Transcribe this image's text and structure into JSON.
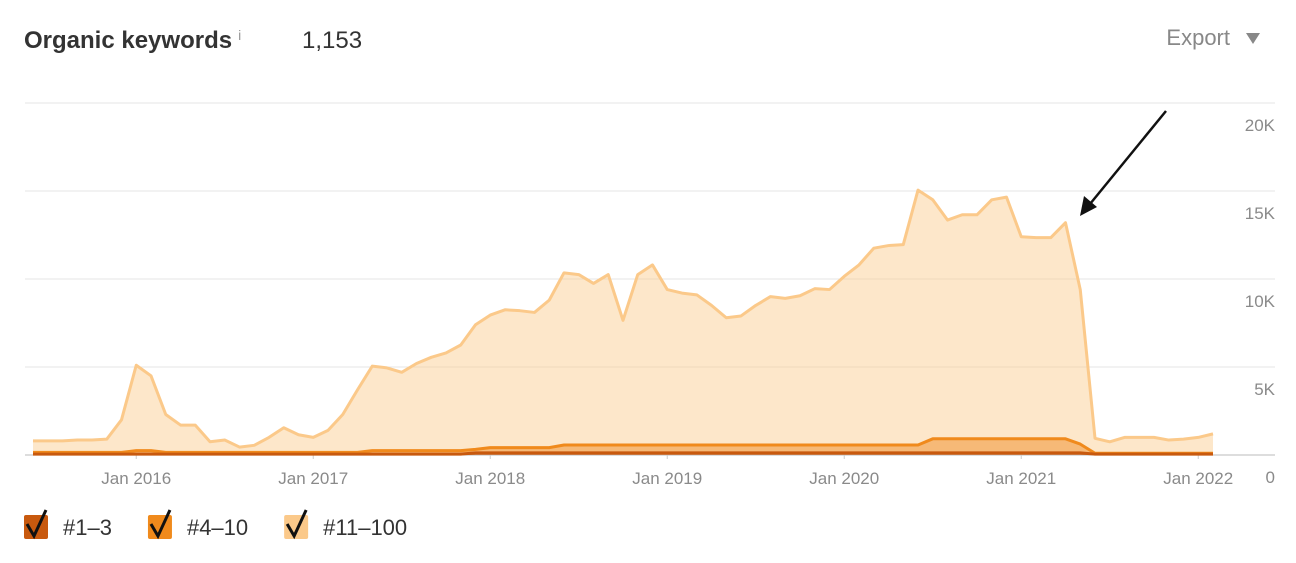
{
  "chart_data": {
    "type": "stacked_area",
    "title": "Organic keywords",
    "title_info": "i",
    "subtitle": "1,153",
    "export_button": "Export",
    "x": [
      "2015-06",
      "2015-07",
      "2015-08",
      "2015-09",
      "2015-10",
      "2015-11",
      "2015-12",
      "2016-01",
      "2016-02",
      "2016-03",
      "2016-04",
      "2016-05",
      "2016-06",
      "2016-07",
      "2016-08",
      "2016-09",
      "2016-10",
      "2016-11",
      "2016-12",
      "2017-01",
      "2017-02",
      "2017-03",
      "2017-04",
      "2017-05",
      "2017-06",
      "2017-07",
      "2017-08",
      "2017-09",
      "2017-10",
      "2017-11",
      "2017-12",
      "2018-01",
      "2018-02",
      "2018-03",
      "2018-04",
      "2018-05",
      "2018-06",
      "2018-07",
      "2018-08",
      "2018-09",
      "2018-10",
      "2018-11",
      "2018-12",
      "2019-01",
      "2019-02",
      "2019-03",
      "2019-04",
      "2019-05",
      "2019-06",
      "2019-07",
      "2019-08",
      "2019-09",
      "2019-10",
      "2019-11",
      "2019-12",
      "2020-01",
      "2020-02",
      "2020-03",
      "2020-04",
      "2020-05",
      "2020-06",
      "2020-07",
      "2020-08",
      "2020-09",
      "2020-10",
      "2020-11",
      "2020-12",
      "2021-01",
      "2021-02",
      "2021-03",
      "2021-04",
      "2021-05",
      "2021-06",
      "2021-07",
      "2021-08",
      "2021-09",
      "2021-10",
      "2021-11",
      "2021-12",
      "2022-01",
      "2022-02"
    ],
    "xticks": [
      {
        "value": "2016-01",
        "label": "Jan 2016"
      },
      {
        "value": "2017-01",
        "label": "Jan 2017"
      },
      {
        "value": "2018-01",
        "label": "Jan 2018"
      },
      {
        "value": "2019-01",
        "label": "Jan 2019"
      },
      {
        "value": "2020-01",
        "label": "Jan 2020"
      },
      {
        "value": "2021-01",
        "label": "Jan 2021"
      },
      {
        "value": "2022-01",
        "label": "Jan 2022"
      }
    ],
    "ylim": [
      0,
      20000
    ],
    "yticks": [
      0,
      {
        "value": 5000,
        "label": "5K"
      },
      {
        "value": 10000,
        "label": "10K"
      },
      {
        "value": 15000,
        "label": "15K"
      },
      {
        "value": 20000,
        "label": "20K"
      }
    ],
    "grid": true,
    "legend": "bottom-left",
    "series": [
      {
        "name": "#1–3",
        "color": "#c8590e",
        "values": [
          50,
          50,
          50,
          50,
          50,
          50,
          50,
          50,
          50,
          50,
          50,
          50,
          50,
          50,
          50,
          50,
          50,
          50,
          50,
          50,
          50,
          50,
          50,
          50,
          50,
          50,
          50,
          50,
          50,
          50,
          120,
          120,
          120,
          120,
          120,
          120,
          120,
          120,
          120,
          120,
          120,
          120,
          120,
          120,
          120,
          120,
          120,
          120,
          120,
          120,
          120,
          120,
          120,
          120,
          120,
          120,
          120,
          120,
          120,
          120,
          120,
          120,
          120,
          120,
          120,
          120,
          120,
          120,
          120,
          120,
          120,
          120,
          50,
          50,
          50,
          50,
          50,
          50,
          50,
          50,
          50
        ]
      },
      {
        "name": "#4–10",
        "color": "#f08a1c",
        "values": [
          100,
          100,
          100,
          100,
          100,
          100,
          100,
          200,
          200,
          100,
          100,
          100,
          100,
          100,
          100,
          100,
          100,
          100,
          100,
          100,
          100,
          100,
          100,
          200,
          200,
          200,
          200,
          200,
          200,
          200,
          200,
          300,
          300,
          300,
          300,
          300,
          450,
          450,
          450,
          450,
          450,
          450,
          450,
          450,
          450,
          450,
          450,
          450,
          450,
          450,
          450,
          450,
          450,
          450,
          450,
          450,
          450,
          450,
          450,
          450,
          450,
          800,
          800,
          800,
          800,
          800,
          800,
          800,
          800,
          800,
          800,
          500,
          50,
          50,
          50,
          50,
          50,
          50,
          50,
          50,
          50
        ]
      },
      {
        "name": "#11–100",
        "color": "#fbc98a",
        "values": [
          650,
          650,
          650,
          700,
          700,
          750,
          1850,
          4850,
          4250,
          2150,
          1550,
          1550,
          600,
          700,
          300,
          400,
          850,
          1400,
          1000,
          850,
          1250,
          2150,
          3550,
          4800,
          4700,
          4450,
          4950,
          5300,
          5550,
          6000,
          7080,
          7530,
          7830,
          7780,
          7680,
          8380,
          9780,
          9680,
          9180,
          9680,
          7080,
          9680,
          10230,
          8830,
          8630,
          8530,
          7930,
          7230,
          7330,
          7930,
          8430,
          8330,
          8480,
          8880,
          8830,
          9580,
          10230,
          11180,
          11330,
          11380,
          14480,
          13580,
          12430,
          12730,
          12730,
          13580,
          13730,
          11480,
          11430,
          11430,
          12280,
          8780,
          850,
          650,
          900,
          900,
          900,
          750,
          800,
          900,
          1100
        ]
      }
    ]
  }
}
